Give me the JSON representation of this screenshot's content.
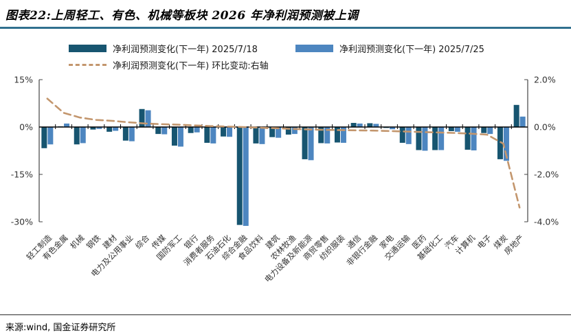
{
  "page": {
    "title": "图表22:上周轻工、有色、机械等板块 2026 年净利润预测被上调",
    "source": "来源:wind, 国金证券研究所"
  },
  "colors": {
    "title_rule": "#30708f",
    "series1": "#175570",
    "series2": "#4d86c0",
    "line": "#c3966d",
    "axis_text": "#333333",
    "axis_line": "#444444",
    "zero_line": "#000000"
  },
  "chart_data": {
    "type": "bar",
    "title": "图表22:上周轻工、有色、机械等板块 2026 年净利润预测被上调",
    "legend_position": "top",
    "grid": false,
    "categories": [
      "轻工制造",
      "有色金属",
      "机械",
      "钢铁",
      "建材",
      "电力及公用事业",
      "综合",
      "传媒",
      "国防军工",
      "银行",
      "消费者服务",
      "石油石化",
      "综合金融",
      "食品饮料",
      "建筑",
      "农林牧渔",
      "电力设备及新能源",
      "商贸零售",
      "纺织服装",
      "通信",
      "非银行金融",
      "家电",
      "交通运输",
      "医药",
      "基础化工",
      "汽车",
      "计算机",
      "电子",
      "煤炭",
      "房地产"
    ],
    "series": [
      {
        "name": "净利润预测变化(下一年) 2025/7/18",
        "type": "bar",
        "axis": "left",
        "color": "#175570",
        "values": [
          -6.7,
          0.2,
          -5.5,
          -0.8,
          -1.5,
          -4.3,
          5.7,
          -2.2,
          -5.9,
          -1.9,
          -5.0,
          -3.0,
          -31.0,
          -5.2,
          -3.2,
          -2.4,
          -10.2,
          -5.1,
          -4.9,
          1.3,
          1.2,
          -0.3,
          -5.0,
          -7.3,
          -7.3,
          -1.3,
          -7.2,
          -1.9,
          -10.2,
          7.0
        ]
      },
      {
        "name": "净利润预测变化(下一年) 2025/7/25",
        "type": "bar",
        "axis": "left",
        "color": "#4d86c0",
        "values": [
          -5.5,
          1.1,
          -5.1,
          -0.6,
          -1.2,
          -4.5,
          5.3,
          -2.3,
          -6.2,
          -1.7,
          -5.2,
          -3.1,
          -31.3,
          -5.4,
          -3.4,
          -2.2,
          -10.5,
          -5.2,
          -5.0,
          1.1,
          1.0,
          -0.7,
          -5.4,
          -7.5,
          -7.3,
          -1.5,
          -7.4,
          -2.2,
          -10.7,
          3.3
        ]
      },
      {
        "name": "净利润预测变化(下一年) 环比变动:右轴",
        "type": "dashed-line",
        "axis": "right",
        "color": "#c3966d",
        "values": [
          1.2,
          0.6,
          0.4,
          0.3,
          0.26,
          0.2,
          0.15,
          0.12,
          0.1,
          0.07,
          0.04,
          0.02,
          0.0,
          -0.03,
          -0.05,
          -0.08,
          -0.1,
          -0.12,
          -0.13,
          -0.14,
          -0.15,
          -0.17,
          -0.19,
          -0.21,
          -0.23,
          -0.25,
          -0.28,
          -0.32,
          -0.7,
          -3.4
        ]
      }
    ],
    "left_axis": {
      "ticks": [
        "15%",
        "0%",
        "-15%",
        "-30%"
      ],
      "min": -30,
      "max": 15,
      "unit": "%"
    },
    "right_axis": {
      "ticks": [
        "2.0%",
        "0.0%",
        "-2.0%",
        "-4.0%"
      ],
      "min": -4,
      "max": 2,
      "unit": "%"
    }
  }
}
